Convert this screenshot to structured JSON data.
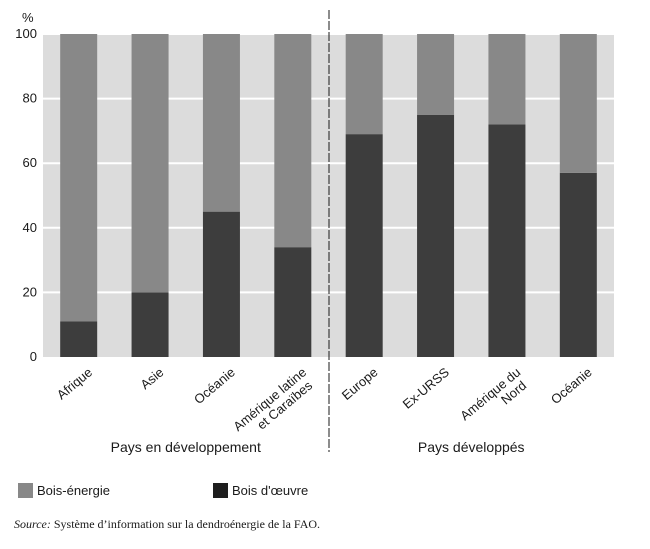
{
  "chart_data": {
    "type": "bar",
    "stacked": true,
    "ylabel": "%",
    "ylim": [
      0,
      100
    ],
    "yticks": [
      0,
      20,
      40,
      60,
      80,
      100
    ],
    "grid": true,
    "categories": [
      "Afrique",
      "Asie",
      "Océanie",
      "Amérique latine et Caraïbes",
      "Europe",
      "Ex-URSS",
      "Amérique du Nord",
      "Océanie"
    ],
    "category_lines": [
      [
        "Afrique"
      ],
      [
        "Asie"
      ],
      [
        "Océanie"
      ],
      [
        "Amérique latine",
        "et Caraïbes"
      ],
      [
        "Europe"
      ],
      [
        "Ex-URSS"
      ],
      [
        "Amérique du",
        "Nord"
      ],
      [
        "Océanie"
      ]
    ],
    "groups": [
      {
        "label": "Pays en développement",
        "categories": [
          0,
          1,
          2,
          3
        ]
      },
      {
        "label": "Pays développés",
        "categories": [
          4,
          5,
          6,
          7
        ]
      }
    ],
    "series": [
      {
        "name": "Bois d'œuvre",
        "color": "#3d3d3d",
        "values": [
          11,
          20,
          45,
          34,
          69,
          75,
          72,
          57
        ]
      },
      {
        "name": "Bois-énergie",
        "color": "#888888",
        "values": [
          89,
          80,
          55,
          66,
          31,
          25,
          28,
          43
        ]
      }
    ],
    "colors": {
      "background": "#dcdcdc",
      "grid": "#ffffff"
    }
  },
  "legend": {
    "items": [
      {
        "label": "Bois-énergie",
        "color": "#888888"
      },
      {
        "label": "Bois d'œuvre",
        "color": "#1e1e1e"
      }
    ]
  },
  "source": {
    "prefix": "Source:",
    "text": " Système d’information sur la dendroénergie de la FAO."
  }
}
